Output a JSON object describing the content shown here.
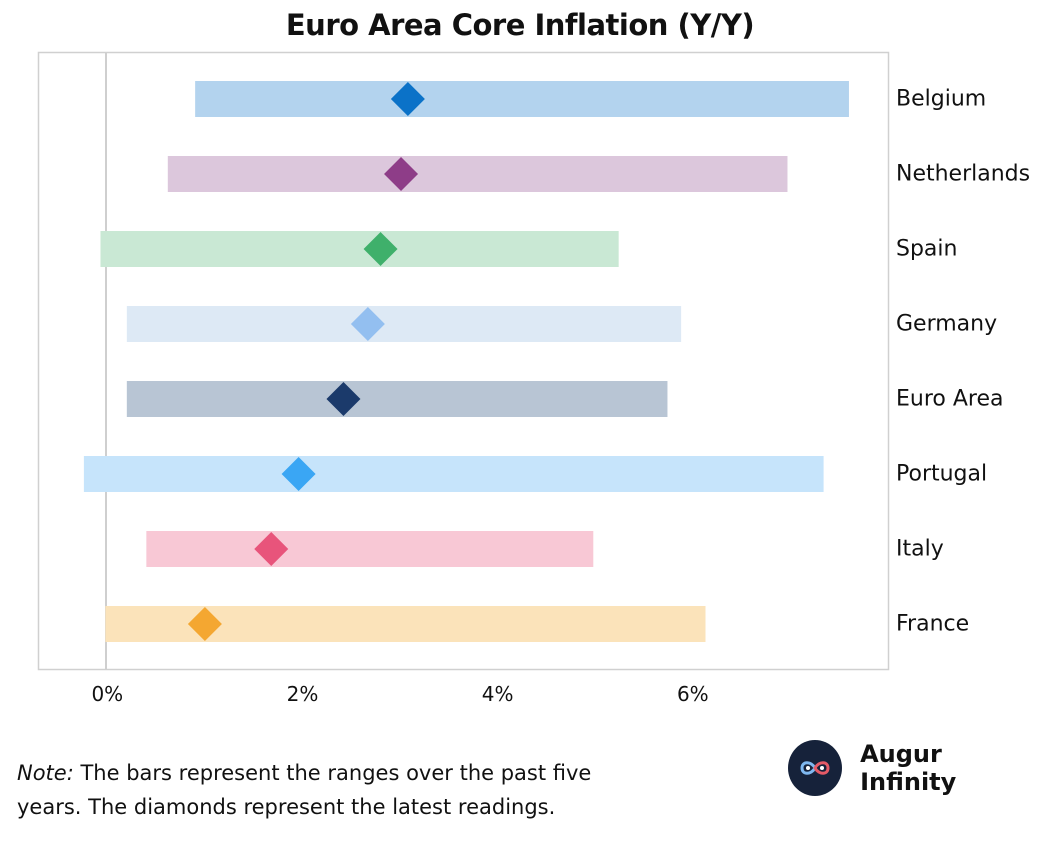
{
  "chart_data": {
    "type": "range",
    "title": "Euro Area Core Inflation (Y/Y)",
    "xlabel": "",
    "ylabel": "",
    "xlim": [
      -0.7,
      8.0
    ],
    "x_ticks": [
      0,
      2,
      4,
      6
    ],
    "x_tick_labels": [
      "0%",
      "2%",
      "4%",
      "6%"
    ],
    "grid": false,
    "categories": [
      "Belgium",
      "Netherlands",
      "Spain",
      "Germany",
      "Euro Area",
      "Portugal",
      "Italy",
      "France"
    ],
    "series": [
      {
        "name": "5-year range (min)",
        "values": [
          0.9,
          0.62,
          -0.07,
          0.2,
          0.2,
          -0.24,
          0.4,
          -0.02
        ]
      },
      {
        "name": "5-year range (max)",
        "values": [
          7.6,
          6.97,
          5.24,
          5.88,
          5.74,
          7.34,
          4.98,
          6.13
        ]
      },
      {
        "name": "Latest reading",
        "values": [
          3.08,
          3.01,
          2.8,
          2.67,
          2.42,
          1.96,
          1.68,
          1.0
        ]
      }
    ],
    "bar_colors": [
      "#b3d3ee",
      "#dcc7dc",
      "#c9e8d4",
      "#dde9f5",
      "#b8c5d4",
      "#c6e4fb",
      "#f8c8d5",
      "#fbe3ba"
    ],
    "diamond_colors": [
      "#0b72c8",
      "#8e3d88",
      "#3fb06b",
      "#93bff0",
      "#1b3a6b",
      "#3aa6f4",
      "#e8547b",
      "#f4a731"
    ]
  },
  "note": {
    "lead": "Note:",
    "text": "The bars represent the ranges over the past five years. The diamonds represent the latest readings."
  },
  "brand": {
    "name": "Augur Infinity"
  }
}
